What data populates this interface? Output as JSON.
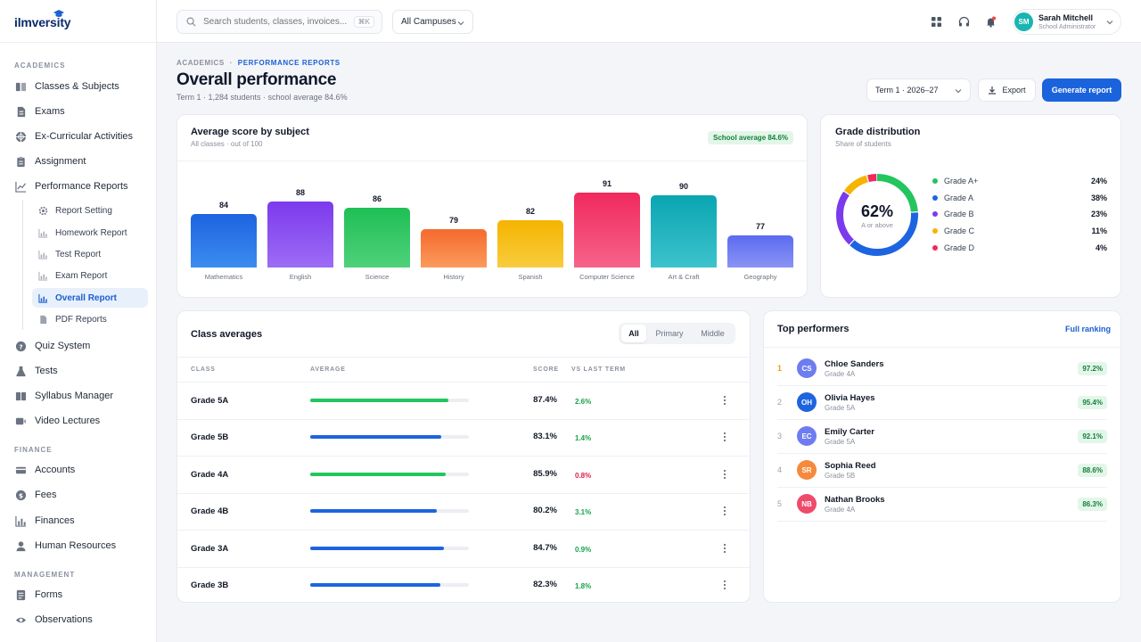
{
  "app": {
    "logo": "ilmversity"
  },
  "sidebar": {
    "sections": {
      "academics": "ACADEMICS",
      "finance": "FINANCE",
      "management": "MANAGEMENT"
    },
    "items": [
      {
        "label": "Classes & Subjects",
        "icon": "book-icon"
      },
      {
        "label": "Exams",
        "icon": "document-icon"
      },
      {
        "label": "Ex-Curricular Activities",
        "icon": "ball-icon"
      },
      {
        "label": "Assignment",
        "icon": "clipboard-icon"
      },
      {
        "label": "Performance Reports",
        "icon": "line-chart-icon"
      },
      {
        "label": "Quiz System",
        "icon": "question-icon"
      },
      {
        "label": "Tests",
        "icon": "flask-icon"
      },
      {
        "label": "Syllabus Manager",
        "icon": "book-open-icon"
      },
      {
        "label": "Video Lectures",
        "icon": "video-icon"
      },
      {
        "label": "Accounts",
        "icon": "card-icon"
      },
      {
        "label": "Fees",
        "icon": "dollar-icon"
      },
      {
        "label": "Finances",
        "icon": "bar-chart-icon"
      },
      {
        "label": "Human Resources",
        "icon": "person-icon"
      },
      {
        "label": "Forms",
        "icon": "form-icon"
      },
      {
        "label": "Observations",
        "icon": "eye-icon"
      }
    ],
    "subitems": [
      {
        "label": "Report Setting",
        "icon": "gear-icon"
      },
      {
        "label": "Homework Report",
        "icon": "bar-chart-icon"
      },
      {
        "label": "Test Report",
        "icon": "bar-chart-icon"
      },
      {
        "label": "Exam Report",
        "icon": "bar-chart-icon"
      },
      {
        "label": "Overall Report",
        "icon": "bar-chart-icon",
        "active": true
      },
      {
        "label": "PDF Reports",
        "icon": "pdf-icon"
      }
    ]
  },
  "topbar": {
    "search_placeholder": "Search students, classes, invoices...",
    "shortcut": "⌘K",
    "campus": "All Campuses",
    "user": {
      "initials": "SM",
      "name": "Sarah Mitchell",
      "role": "School Administrator"
    }
  },
  "header": {
    "crumb_root": "ACADEMICS",
    "crumb_sep": "·",
    "crumb_current": "PERFORMANCE REPORTS",
    "title": "Overall performance",
    "subtitle": "Term 1 · 1,284 students · school average 84.6%",
    "term": "Term 1 · 2026–27",
    "export": "Export",
    "generate": "Generate report"
  },
  "subject_card": {
    "title": "Average score by subject",
    "subtitle": "All classes · out of 100",
    "badge": "School average 84.6%"
  },
  "chart_data": {
    "type": "bar",
    "title": "Average score by subject",
    "subtitle": "All classes · out of 100",
    "categories": [
      "Mathematics",
      "English",
      "Science",
      "History",
      "Spanish",
      "Computer Science",
      "Art & Craft",
      "Geography"
    ],
    "values": [
      84,
      88,
      86,
      79,
      82,
      91,
      90,
      77
    ],
    "ylim": [
      70,
      100
    ],
    "grid": false,
    "colors": [
      [
        "#1d64e0",
        "#3b8cf0"
      ],
      [
        "#7c3aed",
        "#9d6cf5"
      ],
      [
        "#1fbf55",
        "#4fd17a"
      ],
      [
        "#f56a2e",
        "#fb9a5c"
      ],
      [
        "#f5b400",
        "#f8cc3e"
      ],
      [
        "#f0295e",
        "#f6638a"
      ],
      [
        "#0aa5b2",
        "#3dc3cc"
      ],
      [
        "#5b6bf0",
        "#8a94f5"
      ]
    ]
  },
  "grade_card": {
    "title": "Grade distribution",
    "subtitle": "Share of students",
    "center_value": "62%",
    "center_label": "A or above",
    "grades": [
      {
        "label": "Grade A+",
        "value": "24%",
        "pct": 24,
        "color": "#22c55e"
      },
      {
        "label": "Grade A",
        "value": "38%",
        "pct": 38,
        "color": "#1d64e0"
      },
      {
        "label": "Grade B",
        "value": "23%",
        "pct": 23,
        "color": "#7c3aed"
      },
      {
        "label": "Grade C",
        "value": "11%",
        "pct": 11,
        "color": "#f5b400"
      },
      {
        "label": "Grade D",
        "value": "4%",
        "pct": 4,
        "color": "#f0295e"
      }
    ]
  },
  "class_card": {
    "title": "Class averages",
    "tabs": [
      "All",
      "Primary",
      "Middle"
    ],
    "columns": {
      "class": "CLASS",
      "average": "AVERAGE",
      "score": "SCORE",
      "vs": "VS LAST TERM"
    },
    "rows": [
      {
        "name": "Grade 5A",
        "score": "87.4%",
        "pct": 87.4,
        "delta": "2.6%",
        "trend": "up",
        "color": "#22c55e"
      },
      {
        "name": "Grade 5B",
        "score": "83.1%",
        "pct": 83.1,
        "delta": "1.4%",
        "trend": "up",
        "color": "#1d64e0"
      },
      {
        "name": "Grade 4A",
        "score": "85.9%",
        "pct": 85.9,
        "delta": "0.8%",
        "trend": "down",
        "color": "#22c55e"
      },
      {
        "name": "Grade 4B",
        "score": "80.2%",
        "pct": 80.2,
        "delta": "3.1%",
        "trend": "up",
        "color": "#1d64e0"
      },
      {
        "name": "Grade 3A",
        "score": "84.7%",
        "pct": 84.7,
        "delta": "0.9%",
        "trend": "up",
        "color": "#1d64e0"
      },
      {
        "name": "Grade 3B",
        "score": "82.3%",
        "pct": 82.3,
        "delta": "1.8%",
        "trend": "up",
        "color": "#1d64e0"
      }
    ]
  },
  "performers_card": {
    "title": "Top performers",
    "link": "Full ranking",
    "items": [
      {
        "rank": "1",
        "initials": "CS",
        "name": "Chloe Sanders",
        "grade": "Grade 4A",
        "score": "97.2%",
        "color": "#6d7cf0"
      },
      {
        "rank": "2",
        "initials": "OH",
        "name": "Olivia Hayes",
        "grade": "Grade 5A",
        "score": "95.4%",
        "color": "#1d64e0"
      },
      {
        "rank": "3",
        "initials": "EC",
        "name": "Emily Carter",
        "grade": "Grade 5A",
        "score": "92.1%",
        "color": "#6d7cf0"
      },
      {
        "rank": "4",
        "initials": "SR",
        "name": "Sophia Reed",
        "grade": "Grade 5B",
        "score": "88.6%",
        "color": "#f58a3c"
      },
      {
        "rank": "5",
        "initials": "NB",
        "name": "Nathan Brooks",
        "grade": "Grade 4A",
        "score": "86.3%",
        "color": "#ee4a6a"
      }
    ]
  }
}
